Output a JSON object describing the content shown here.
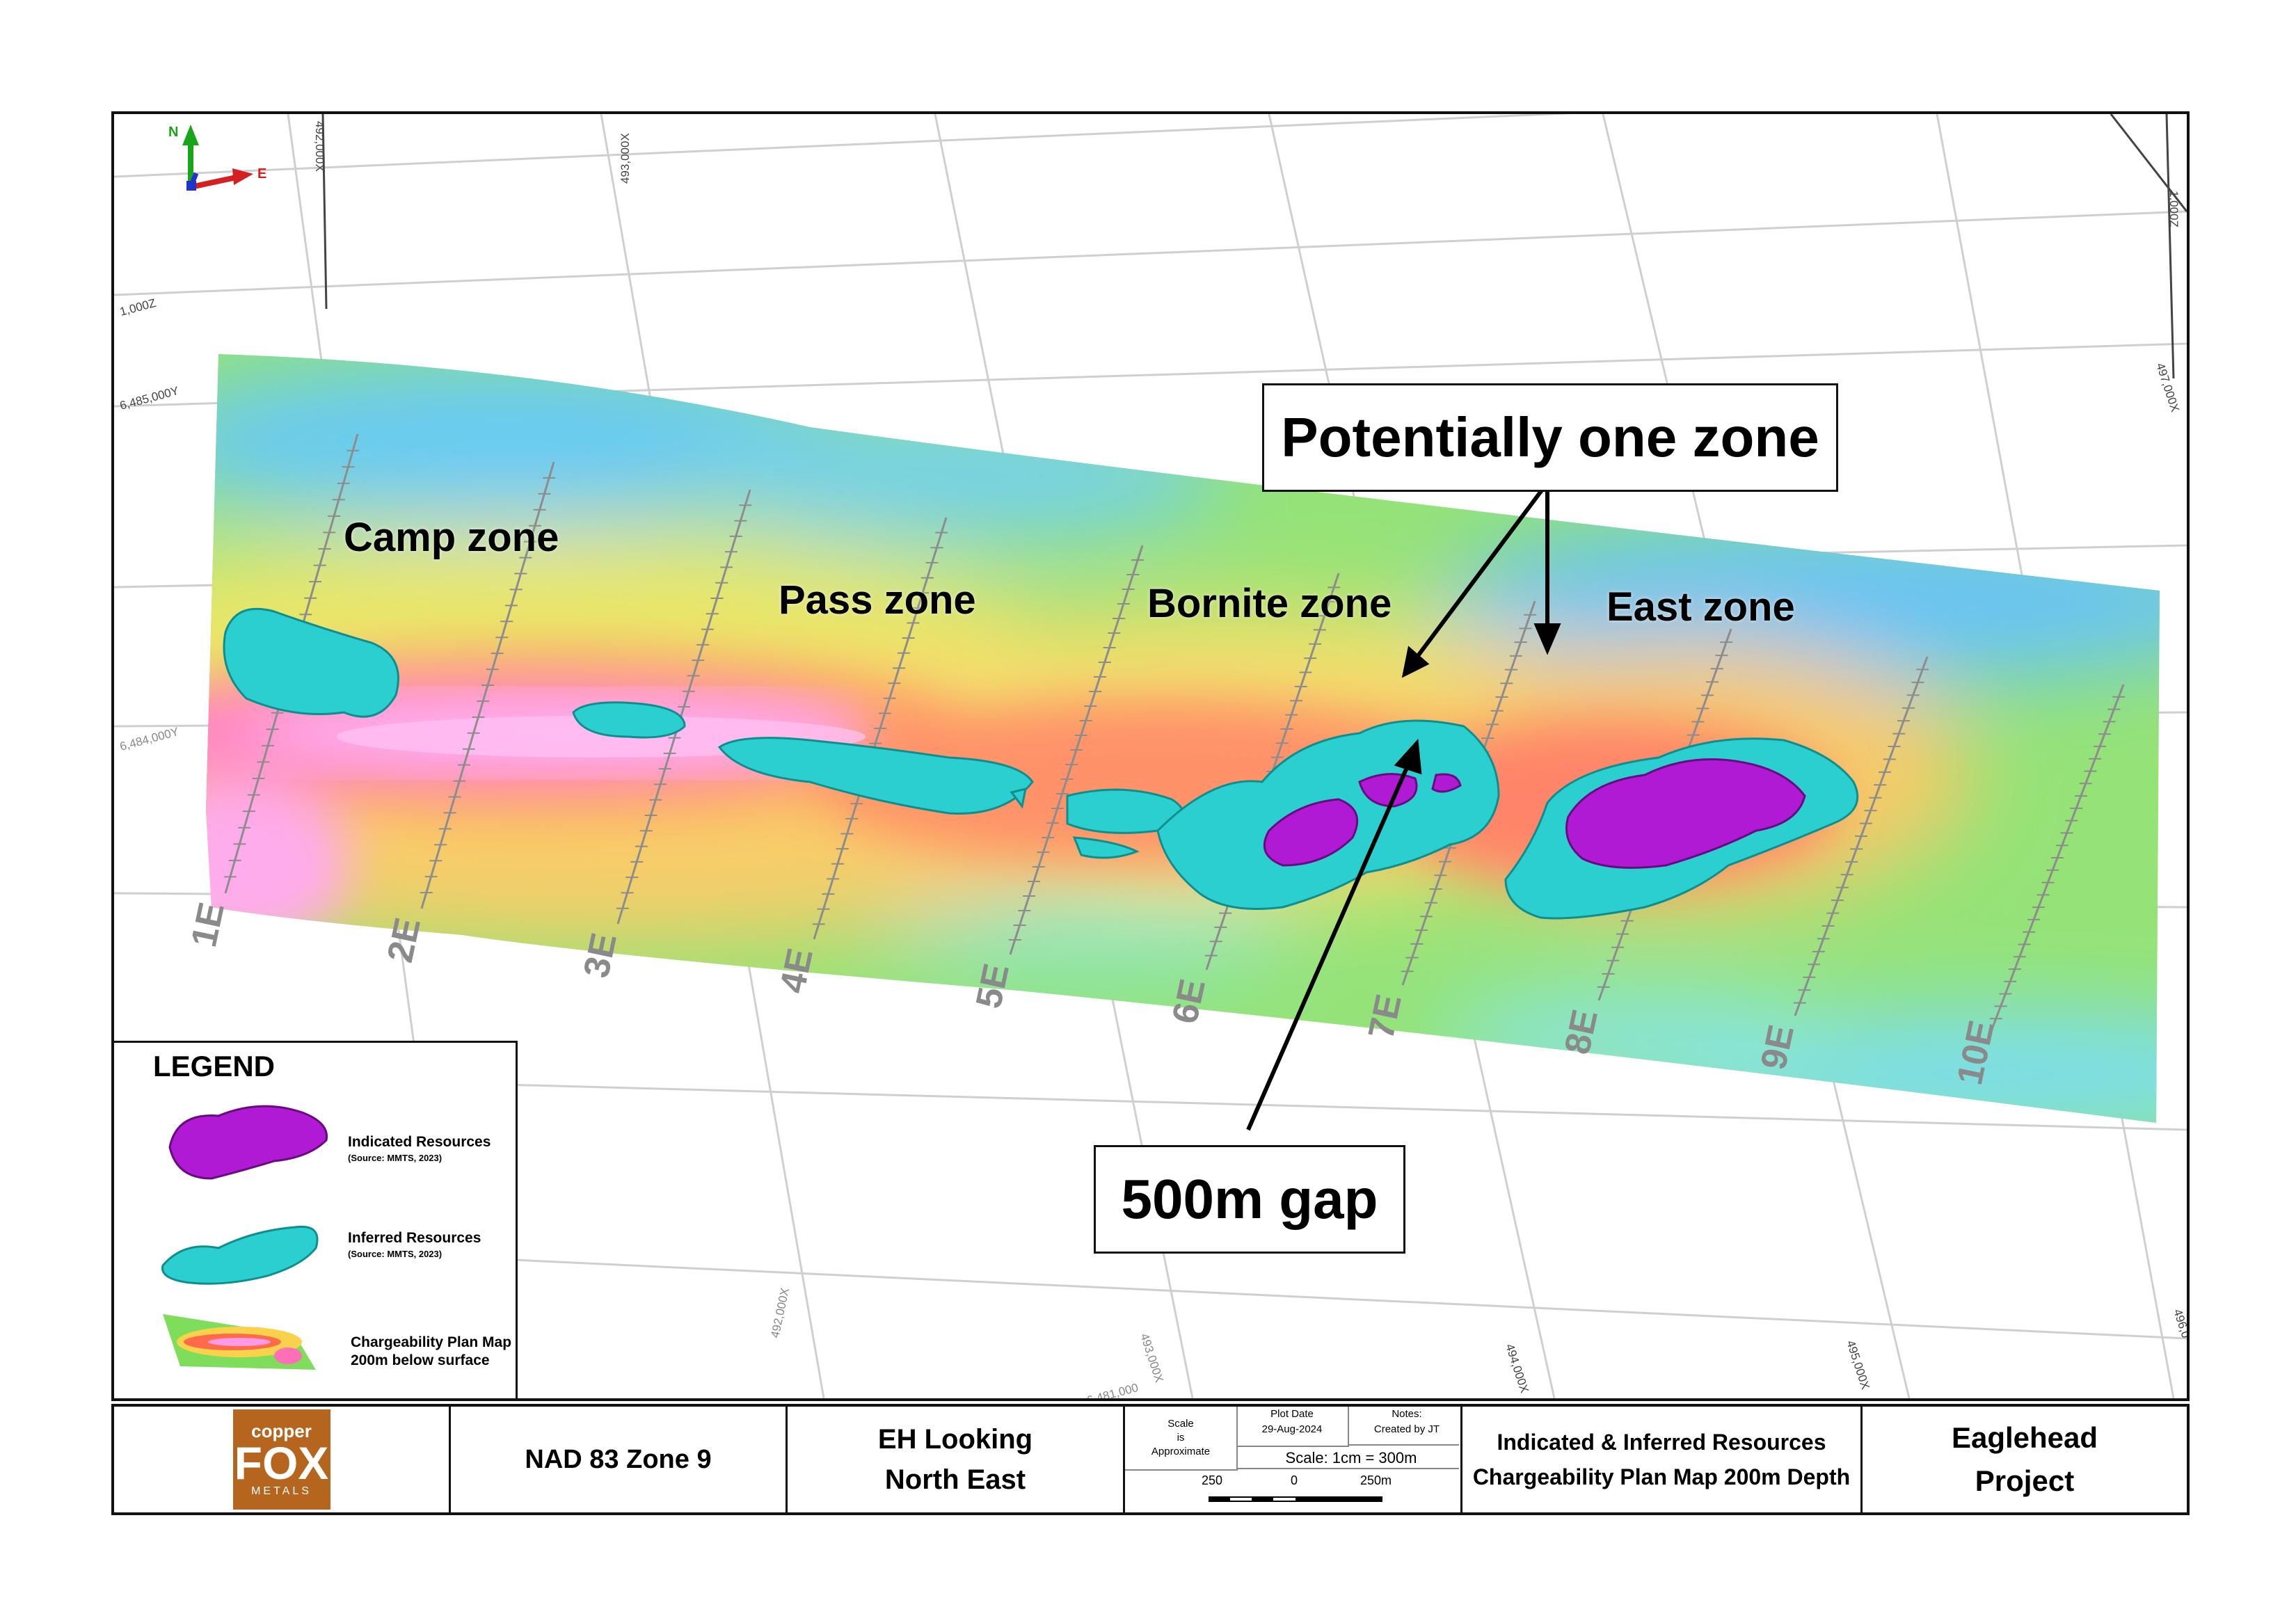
{
  "map": {
    "zones": [
      {
        "name": "Camp zone"
      },
      {
        "name": "Pass zone"
      },
      {
        "name": "Bornite zone"
      },
      {
        "name": "East zone"
      }
    ],
    "callouts": {
      "one_zone": "Potentially one zone",
      "gap": "500m gap"
    },
    "section_lines": [
      "1E",
      "2E",
      "3E",
      "4E",
      "5E",
      "6E",
      "7E",
      "8E",
      "9E",
      "10E"
    ],
    "grid_labels": {
      "x_492000_top": "492,000X",
      "x_493000_top": "493,000X",
      "x_497000": "497,000X",
      "z_1000_left": "1,000Z",
      "z_1000_right": "1,000Z",
      "y_6485000": "6,485,000Y",
      "y_6484000": "6,484,000Y",
      "x_492000_bottom": "492,000X",
      "x_493000_bottom": "493,000X",
      "y_6481000": "6,481,000",
      "x_494000_bottom": "494,000X",
      "x_495000_bottom": "495,000X",
      "x_496_partial": "496,0"
    },
    "north_arrow": {
      "n": "N",
      "e": "E"
    },
    "colors": {
      "indicated": "#b21ad6",
      "inferred": "#2ed0d0",
      "chargeability_high": "#ff8fe8",
      "chargeability_low": "#3fa9ef"
    }
  },
  "legend": {
    "title": "LEGEND",
    "items": [
      {
        "label": "Indicated Resources",
        "source": "(Source: MMTS, 2023)"
      },
      {
        "label": "Inferred Resources",
        "source": "(Source: MMTS, 2023)"
      },
      {
        "label": "Chargeability Plan Map\n200m below surface"
      }
    ]
  },
  "title_block": {
    "logo_top": "copper",
    "logo_main": "FOX",
    "logo_bottom": "METALS",
    "datum": "NAD 83 Zone 9",
    "view_line1": "EH Looking",
    "view_line2": "North East",
    "scale_note": "Scale\nis\nApproximate",
    "plot_date_label": "Plot Date",
    "plot_date": "29-Aug-2024",
    "notes_label": "Notes:",
    "notes": "Created by JT",
    "scale": "Scale: 1cm = 300m",
    "scalebar_left": "250",
    "scalebar_mid": "0",
    "scalebar_right": "250m",
    "map_title_1": "Indicated & Inferred Resources",
    "map_title_2": "Chargeability Plan Map 200m Depth",
    "project_1": "Eaglehead",
    "project_2": "Project"
  }
}
